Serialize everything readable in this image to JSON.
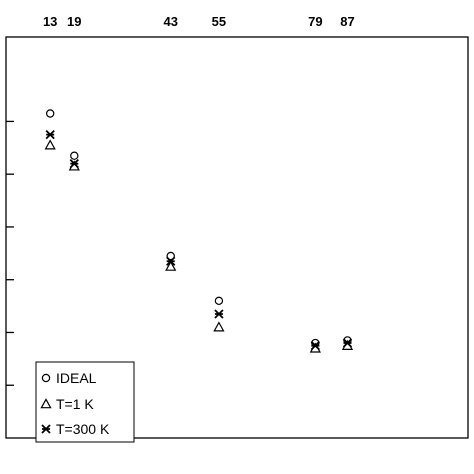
{
  "chart_data": {
    "type": "scatter",
    "title": "",
    "xlabel": "",
    "ylabel": "",
    "x_tick_labels": [
      "13",
      "19",
      "43",
      "55",
      "79",
      "87"
    ],
    "x": [
      13,
      19,
      43,
      55,
      79,
      87
    ],
    "xlim": [
      2,
      117
    ],
    "ylim": [
      0,
      7.6
    ],
    "y_ticks": [
      1,
      2,
      3,
      4,
      5,
      6
    ],
    "grid": false,
    "legend_position": "bottom-left",
    "series": [
      {
        "name": "IDEAL",
        "marker": "circle",
        "values": [
          6.15,
          5.35,
          3.45,
          2.6,
          1.8,
          1.85
        ]
      },
      {
        "name": "T=1 K",
        "marker": "triangle",
        "values": [
          5.55,
          5.15,
          3.25,
          2.1,
          1.7,
          1.75
        ]
      },
      {
        "name": "T=300 K",
        "marker": "cross",
        "values": [
          5.75,
          5.2,
          3.35,
          2.35,
          1.75,
          1.8
        ]
      }
    ]
  }
}
